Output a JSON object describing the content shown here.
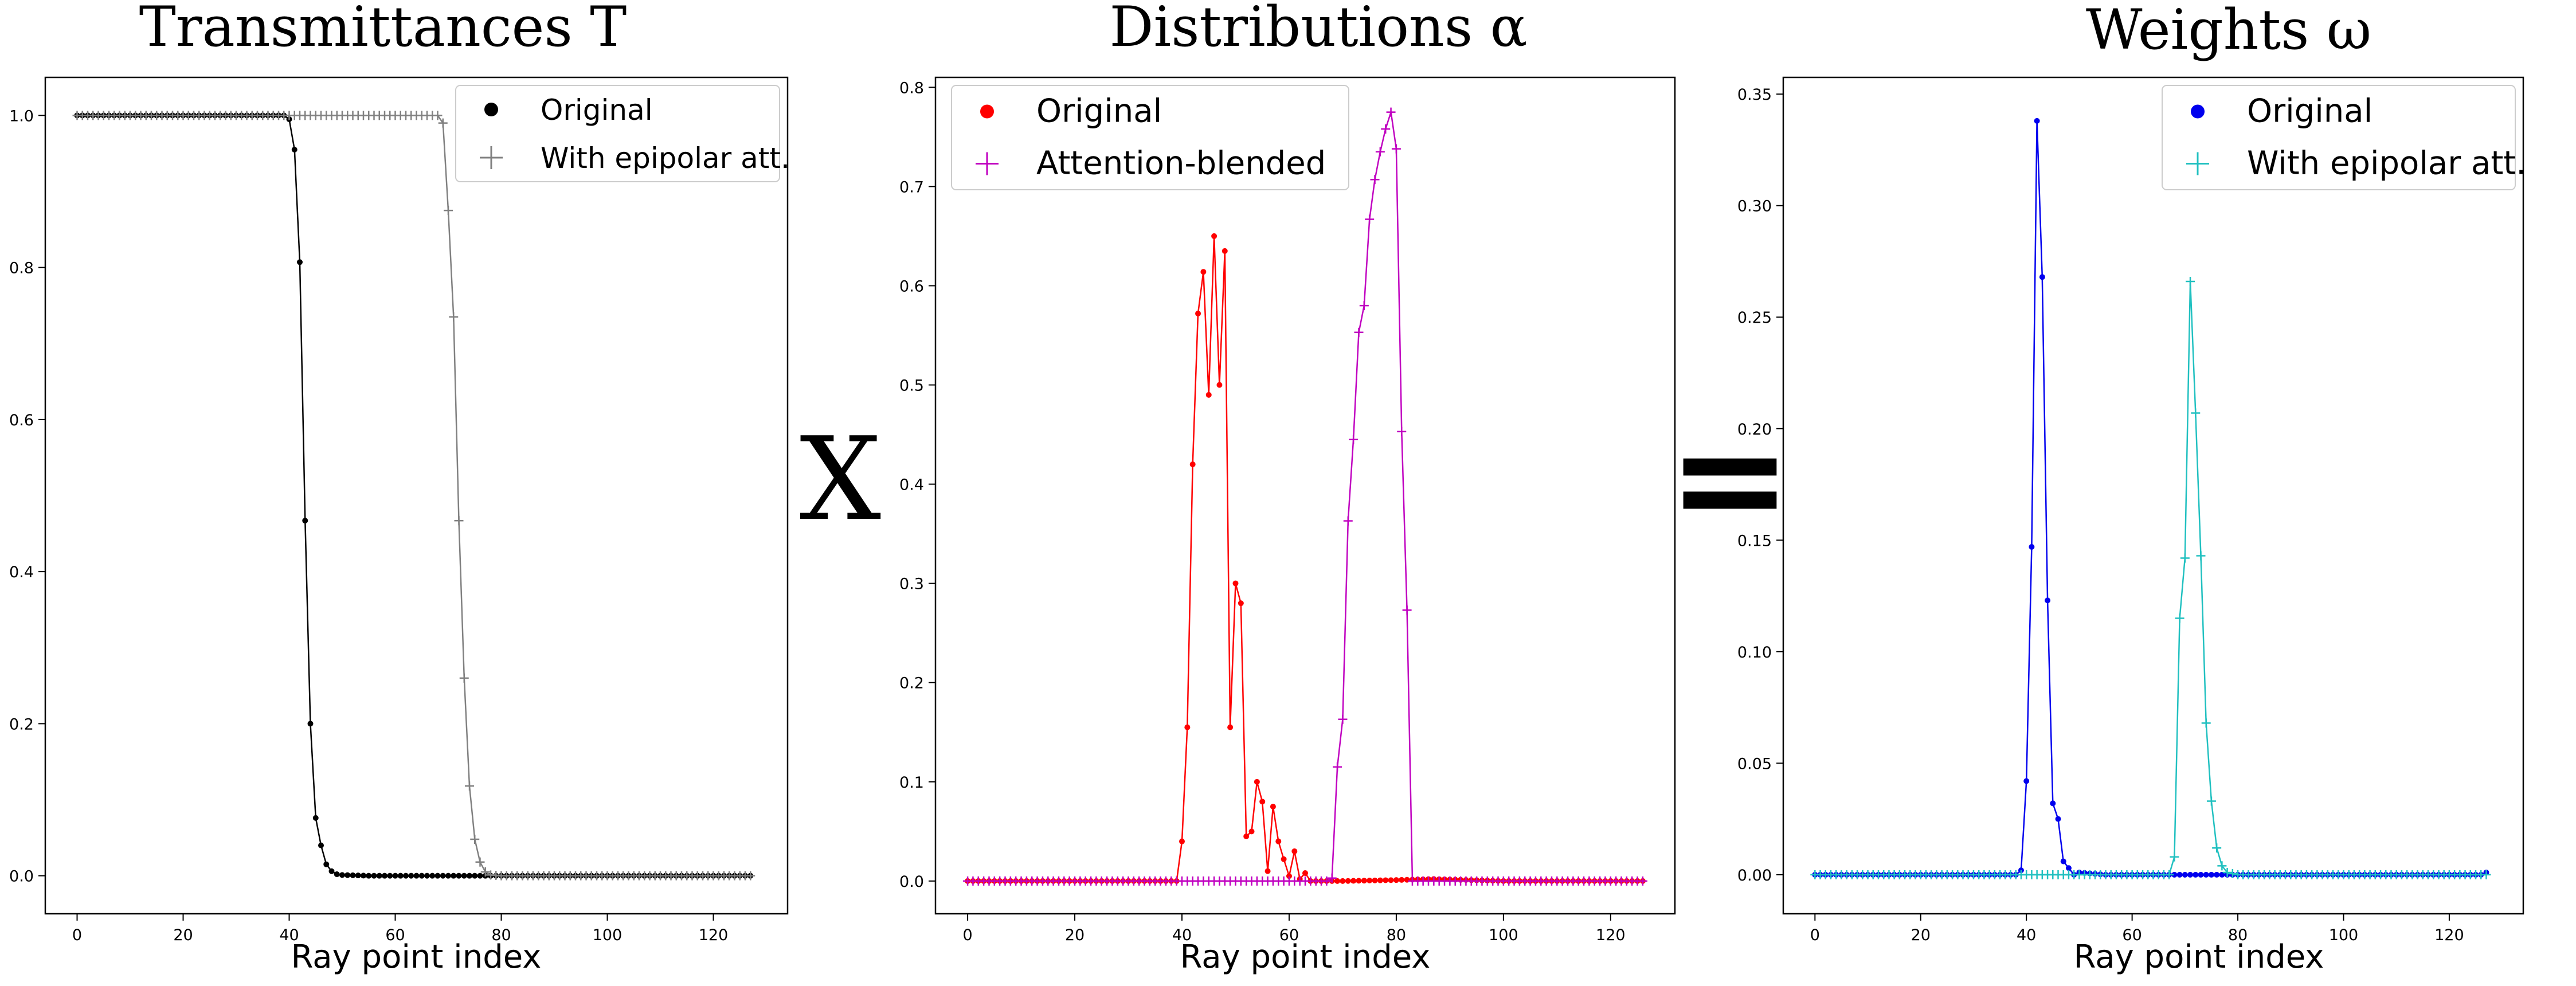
{
  "operators": {
    "times": "X",
    "equals": "="
  },
  "colors": {
    "t_original": "#000000",
    "t_epipolar": "#808080",
    "a_original": "#ff0000",
    "a_blended": "#c000c0",
    "w_original": "#0000ee",
    "w_epipolar": "#20c0c0"
  },
  "chart_data": [
    {
      "type": "line",
      "title": "Transmittances T",
      "xlabel": "Ray point index",
      "ylabel": "",
      "xlim": [
        -6,
        134
      ],
      "ylim": [
        -0.05,
        1.05
      ],
      "xticks": [
        0,
        20,
        40,
        60,
        80,
        100,
        120
      ],
      "yticks": [
        0.0,
        0.2,
        0.4,
        0.6,
        0.8,
        1.0
      ],
      "ytick_labels": [
        "0.0",
        "0.2",
        "0.4",
        "0.6",
        "0.8",
        "1.0"
      ],
      "grid": false,
      "legend_position": "top-right",
      "series": [
        {
          "name": "Original",
          "color": "#000000",
          "marker": "dot",
          "points": [
            [
              0,
              1.0
            ],
            [
              10,
              1.0
            ],
            [
              20,
              1.0
            ],
            [
              30,
              1.0
            ],
            [
              39,
              1.0
            ],
            [
              40,
              0.995
            ],
            [
              41,
              0.955
            ],
            [
              42,
              0.807
            ],
            [
              43,
              0.467
            ],
            [
              44,
              0.2
            ],
            [
              45,
              0.076
            ],
            [
              46,
              0.04
            ],
            [
              47,
              0.015
            ],
            [
              48,
              0.006
            ],
            [
              49,
              0.002
            ],
            [
              50,
              0.001
            ],
            [
              55,
              0.0
            ],
            [
              80,
              0.0
            ],
            [
              100,
              0.0
            ],
            [
              127,
              0.0
            ]
          ]
        },
        {
          "name": "With epipolar att.",
          "color": "#808080",
          "marker": "plus",
          "points": [
            [
              0,
              1.0
            ],
            [
              20,
              1.0
            ],
            [
              40,
              1.0
            ],
            [
              60,
              1.0
            ],
            [
              68,
              1.0
            ],
            [
              69,
              0.99
            ],
            [
              70,
              0.875
            ],
            [
              71,
              0.735
            ],
            [
              72,
              0.467
            ],
            [
              73,
              0.26
            ],
            [
              74,
              0.118
            ],
            [
              75,
              0.048
            ],
            [
              76,
              0.018
            ],
            [
              77,
              0.005
            ],
            [
              78,
              0.001
            ],
            [
              80,
              0.0
            ],
            [
              100,
              0.0
            ],
            [
              127,
              0.0
            ]
          ]
        }
      ]
    },
    {
      "type": "line",
      "title": "Distributions α",
      "xlabel": "Ray point index",
      "ylabel": "",
      "xlim": [
        -6,
        132
      ],
      "ylim": [
        -0.033,
        0.81
      ],
      "xticks": [
        0,
        20,
        40,
        60,
        80,
        100,
        120
      ],
      "yticks": [
        0.0,
        0.1,
        0.2,
        0.3,
        0.4,
        0.5,
        0.6,
        0.7,
        0.8
      ],
      "ytick_labels": [
        "0.0",
        "0.1",
        "0.2",
        "0.3",
        "0.4",
        "0.5",
        "0.6",
        "0.7",
        "0.8"
      ],
      "grid": false,
      "legend_position": "top-left",
      "series": [
        {
          "name": "Original",
          "color": "#ff0000",
          "marker": "dot",
          "points": [
            [
              0,
              0.0
            ],
            [
              20,
              0.0
            ],
            [
              38,
              0.0
            ],
            [
              39,
              0.0
            ],
            [
              40,
              0.04
            ],
            [
              41,
              0.155
            ],
            [
              42,
              0.42
            ],
            [
              43,
              0.572
            ],
            [
              44,
              0.614
            ],
            [
              45,
              0.49
            ],
            [
              46,
              0.65
            ],
            [
              47,
              0.5
            ],
            [
              48,
              0.635
            ],
            [
              49,
              0.155
            ],
            [
              50,
              0.3
            ],
            [
              51,
              0.28
            ],
            [
              52,
              0.045
            ],
            [
              53,
              0.05
            ],
            [
              54,
              0.1
            ],
            [
              55,
              0.08
            ],
            [
              56,
              0.01
            ],
            [
              57,
              0.075
            ],
            [
              58,
              0.04
            ],
            [
              59,
              0.022
            ],
            [
              60,
              0.005
            ],
            [
              61,
              0.03
            ],
            [
              62,
              0.002
            ],
            [
              63,
              0.008
            ],
            [
              64,
              0.0
            ],
            [
              66,
              0.0
            ],
            [
              70,
              0.0
            ],
            [
              80,
              0.001
            ],
            [
              87,
              0.002
            ],
            [
              100,
              0.0
            ],
            [
              126,
              0.0
            ]
          ]
        },
        {
          "name": "Attention-blended",
          "color": "#c000c0",
          "marker": "plus",
          "points": [
            [
              0,
              0.0
            ],
            [
              20,
              0.0
            ],
            [
              40,
              0.0
            ],
            [
              60,
              0.0
            ],
            [
              67,
              0.0
            ],
            [
              68,
              0.003
            ],
            [
              69,
              0.115
            ],
            [
              70,
              0.163
            ],
            [
              71,
              0.363
            ],
            [
              72,
              0.445
            ],
            [
              73,
              0.553
            ],
            [
              74,
              0.58
            ],
            [
              75,
              0.667
            ],
            [
              76,
              0.707
            ],
            [
              77,
              0.735
            ],
            [
              78,
              0.758
            ],
            [
              79,
              0.775
            ],
            [
              80,
              0.738
            ],
            [
              81,
              0.453
            ],
            [
              82,
              0.273
            ],
            [
              83,
              0.0
            ],
            [
              100,
              0.0
            ],
            [
              126,
              0.0
            ]
          ]
        }
      ]
    },
    {
      "type": "line",
      "title": "Weights ω",
      "xlabel": "Ray point index",
      "ylabel": "",
      "xlim": [
        -6,
        134
      ],
      "ylim": [
        -0.0175,
        0.3575
      ],
      "xticks": [
        0,
        20,
        40,
        60,
        80,
        100,
        120
      ],
      "yticks": [
        0.0,
        0.05,
        0.1,
        0.15,
        0.2,
        0.25,
        0.3,
        0.35
      ],
      "ytick_labels": [
        "0.00",
        "0.05",
        "0.10",
        "0.15",
        "0.20",
        "0.25",
        "0.30",
        "0.35"
      ],
      "grid": false,
      "legend_position": "top-right",
      "series": [
        {
          "name": "Original",
          "color": "#0000ee",
          "marker": "dot",
          "points": [
            [
              0,
              0.0
            ],
            [
              20,
              0.0
            ],
            [
              38,
              0.0
            ],
            [
              39,
              0.002
            ],
            [
              40,
              0.042
            ],
            [
              41,
              0.147
            ],
            [
              42,
              0.338
            ],
            [
              43,
              0.268
            ],
            [
              44,
              0.123
            ],
            [
              45,
              0.032
            ],
            [
              46,
              0.025
            ],
            [
              47,
              0.006
            ],
            [
              48,
              0.003
            ],
            [
              49,
              0.0
            ],
            [
              50,
              0.001
            ],
            [
              55,
              0.0
            ],
            [
              80,
              0.0
            ],
            [
              100,
              0.0
            ],
            [
              126,
              0.0
            ],
            [
              127,
              0.001
            ]
          ]
        },
        {
          "name": "With epipolar att.",
          "color": "#20c0c0",
          "marker": "plus",
          "points": [
            [
              0,
              0.0
            ],
            [
              20,
              0.0
            ],
            [
              40,
              0.0
            ],
            [
              60,
              0.0
            ],
            [
              67,
              0.0
            ],
            [
              68,
              0.008
            ],
            [
              69,
              0.115
            ],
            [
              70,
              0.142
            ],
            [
              71,
              0.266
            ],
            [
              72,
              0.207
            ],
            [
              73,
              0.143
            ],
            [
              74,
              0.068
            ],
            [
              75,
              0.033
            ],
            [
              76,
              0.012
            ],
            [
              77,
              0.004
            ],
            [
              78,
              0.001
            ],
            [
              80,
              0.0
            ],
            [
              100,
              0.0
            ],
            [
              127,
              0.0
            ]
          ]
        }
      ]
    }
  ]
}
